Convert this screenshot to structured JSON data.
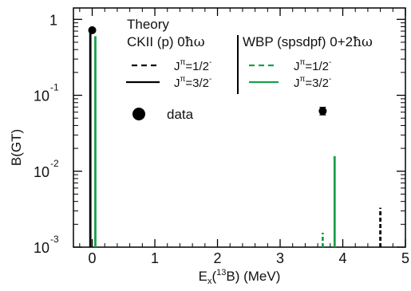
{
  "chart_data": {
    "type": "bar",
    "xlabel": {
      "main": "E",
      "sub": "x",
      "paren_open": "(",
      "sup": "13",
      "element": "B",
      "paren_close": ")",
      "unit": " (MeV)"
    },
    "ylabel": "B(GT)",
    "xlim": [
      -0.3,
      5.0
    ],
    "ylim_log10": [
      -3.0,
      0.15
    ],
    "y_scale": "log",
    "x_ticks": [
      0,
      1,
      2,
      3,
      4,
      5
    ],
    "x_tick_labels": [
      "0",
      "1",
      "2",
      "3",
      "4",
      "5"
    ],
    "y_ticks": [
      {
        "value": 1,
        "base": "1",
        "exp": ""
      },
      {
        "value": 0.1,
        "base": "10",
        "exp": "-1"
      },
      {
        "value": 0.01,
        "base": "10",
        "exp": "-2"
      },
      {
        "value": 0.001,
        "base": "10",
        "exp": "-3"
      }
    ],
    "series": [
      {
        "name": "CKII (p) 0ħω J^π=1/2^-",
        "color": "#000000",
        "dash": true,
        "points": [
          {
            "x": 4.6,
            "y": 0.0033
          }
        ]
      },
      {
        "name": "CKII (p) 0ħω J^π=3/2^-",
        "color": "#000000",
        "dash": false,
        "points": [
          {
            "x": -0.03,
            "y": 0.72
          }
        ]
      },
      {
        "name": "WBP (spsdpf) 0+2ħω J^π=1/2^-",
        "color": "#1aa04a",
        "dash": true,
        "points": [
          {
            "x": 3.68,
            "y": 0.00155
          }
        ]
      },
      {
        "name": "WBP (spsdpf) 0+2ħω J^π=3/2^-",
        "color": "#1aa04a",
        "dash": false,
        "points": [
          {
            "x": 0.05,
            "y": 0.6
          },
          {
            "x": 3.87,
            "y": 0.0158
          }
        ]
      }
    ],
    "data_points": [
      {
        "x": 0.0,
        "y": 0.72,
        "yerr_lo": 0.0,
        "yerr_hi": 0.0
      },
      {
        "x": 3.68,
        "y": 0.062,
        "yerr_lo": 0.0068,
        "yerr_hi": 0.0075
      }
    ],
    "legend": {
      "title": "Theory",
      "left_title": "CKII (p) 0",
      "left_title_suffix": "ħω",
      "right_title": "WBP (spsdpf) 0+2",
      "right_title_suffix": "ħω",
      "j_half": {
        "j": "J",
        "pi": "π",
        "val": "=1/2",
        "sign": "-"
      },
      "j_three_half": {
        "j": "J",
        "pi": "π",
        "val": "=3/2",
        "sign": "-"
      },
      "data_label": "data",
      "placement": "top-right"
    }
  }
}
